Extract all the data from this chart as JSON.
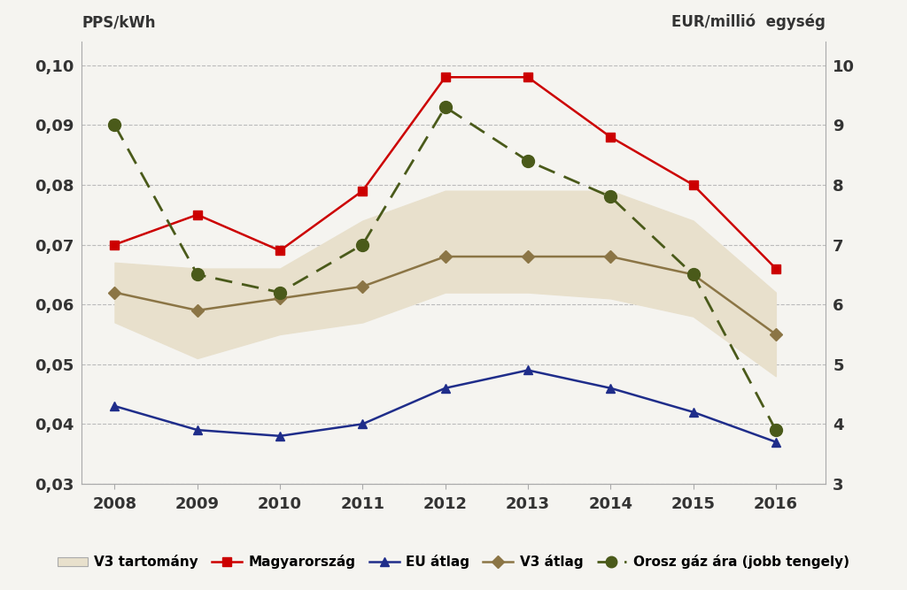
{
  "years": [
    2008,
    2009,
    2010,
    2011,
    2012,
    2013,
    2014,
    2015,
    2016
  ],
  "magyarorszag": [
    0.07,
    0.075,
    0.069,
    0.079,
    0.098,
    0.098,
    0.088,
    0.08,
    0.066
  ],
  "eu_atlag": [
    0.043,
    0.039,
    0.038,
    0.04,
    0.046,
    0.049,
    0.046,
    0.042,
    0.037
  ],
  "v3_atlag": [
    0.062,
    0.059,
    0.061,
    0.063,
    0.068,
    0.068,
    0.068,
    0.065,
    0.055
  ],
  "v3_min": [
    0.057,
    0.051,
    0.055,
    0.057,
    0.062,
    0.062,
    0.061,
    0.058,
    0.048
  ],
  "v3_max": [
    0.067,
    0.066,
    0.066,
    0.074,
    0.079,
    0.079,
    0.079,
    0.074,
    0.062
  ],
  "orosz_gaz": [
    9.0,
    6.5,
    6.2,
    7.0,
    9.3,
    8.4,
    7.8,
    6.5,
    3.9
  ],
  "magyarorszag_color": "#cc0000",
  "eu_atlag_color": "#1f2d8a",
  "v3_atlag_color": "#8b7545",
  "orosz_gaz_color": "#4a5a1a",
  "v3_fill_color": "#e8e0cc",
  "background_color": "#f5f4f0",
  "plot_bg_color": "#f5f4f0",
  "grid_color": "#bbbbbb",
  "ylim_left": [
    0.03,
    0.104
  ],
  "ylim_right": [
    3,
    10.4
  ],
  "yticks_left": [
    0.03,
    0.04,
    0.05,
    0.06,
    0.07,
    0.08,
    0.09,
    0.1
  ],
  "ytick_labels_left": [
    "0,03",
    "0,04",
    "0,05",
    "0,06",
    "0,07",
    "0,08",
    "0,09",
    "0,10"
  ],
  "yticks_right": [
    3,
    4,
    5,
    6,
    7,
    8,
    9,
    10
  ],
  "ylabel_left": "PPS/kWh",
  "ylabel_right": "EUR/millió  egység",
  "legend_labels": [
    "V3 tartomány",
    "Magyarország",
    "EU átlag",
    "V3 átlag",
    "Orosz gáz ára (jobb tengely)"
  ]
}
